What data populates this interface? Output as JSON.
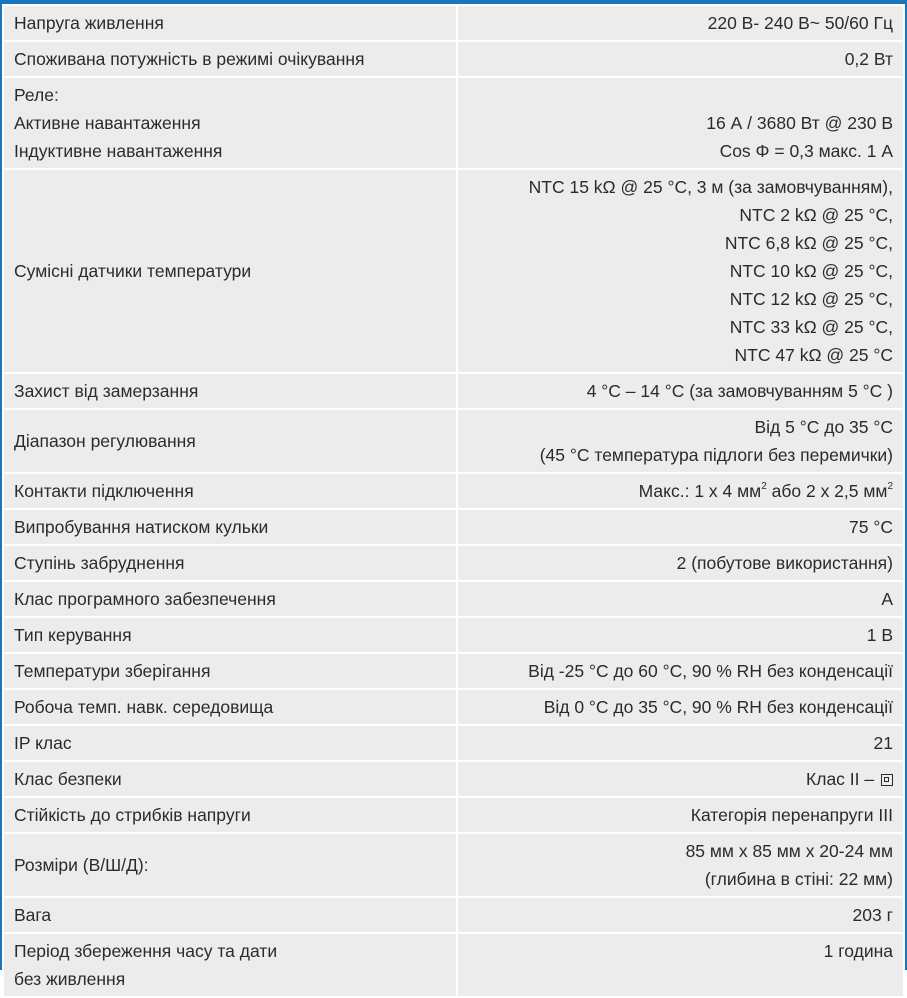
{
  "rows": [
    {
      "label": "Напруга живлення",
      "value": "220 В- 240 В~ 50/60 Гц"
    },
    {
      "label": "Споживана потужність в режимі очікування",
      "value": "0,2 Вт"
    },
    {
      "label_lines": [
        "Реле:",
        "Активне навантаження",
        "Індуктивне навантаження"
      ],
      "value_lines": [
        "16 А / 3680 Вт @ 230 В",
        "Cos Φ = 0,3 макс. 1 А"
      ]
    },
    {
      "label": "Сумісні датчики температури",
      "value_lines": [
        "NTC 15 kΩ @ 25 °C, 3 м (за замовчуванням),",
        "NTC 2 kΩ @ 25 °C,",
        "NTC 6,8 kΩ @ 25 °C,",
        "NTC 10 kΩ @ 25 °C,",
        "NTC 12 kΩ @ 25 °C,",
        "NTC 33 kΩ @ 25 °C,",
        "NTC 47 kΩ @ 25 °C"
      ]
    },
    {
      "label": "Захист від замерзання",
      "value": "4 °C – 14 °C (за замовчуванням 5 °C )"
    },
    {
      "label": "Діапазон регулювання",
      "value_lines": [
        "Від 5 °C до 35 °C",
        "(45 °C температура підлоги без перемички)"
      ]
    },
    {
      "label": "Контакти підключення",
      "value_parts": [
        "Макс.: 1 x 4 мм",
        "2",
        " або 2 x 2,5 мм",
        "2"
      ]
    },
    {
      "label": "Випробування натиском кульки",
      "value": "75 °C"
    },
    {
      "label": "Ступінь забруднення",
      "value": "2 (побутове використання)"
    },
    {
      "label": "Клас програмного забезпечення",
      "value": "A"
    },
    {
      "label": "Тип керування",
      "value": "1 B"
    },
    {
      "label": "Температури зберігання",
      "value": "Від -25 °C до 60 °C, 90 % RH без конденсації"
    },
    {
      "label": "Робоча темп. навк. середовища",
      "value": "Від 0 °C до 35 °C, 90 % RH без конденсації"
    },
    {
      "label": "IP клас",
      "value": "21"
    },
    {
      "label": "Клас безпеки",
      "value": "Клас II –",
      "icon": "class-ii-double-square-icon"
    },
    {
      "label": "Стійкість до стрибків напруги",
      "value": "Категорія перенапруги III"
    },
    {
      "label": "Розміри (В/Ш/Д):",
      "value_lines": [
        "85 мм x 85 мм x 20-24 мм",
        "(глибина в стіні: 22 мм)"
      ]
    },
    {
      "label": "Вага",
      "value": "203 г"
    },
    {
      "label_lines": [
        "Період збереження часу та дати",
        "без живлення"
      ],
      "value": "1 година"
    }
  ],
  "colors": {
    "accent": "#1a75bb",
    "cell_bg": "#ececec",
    "text": "#2b2b2b"
  }
}
